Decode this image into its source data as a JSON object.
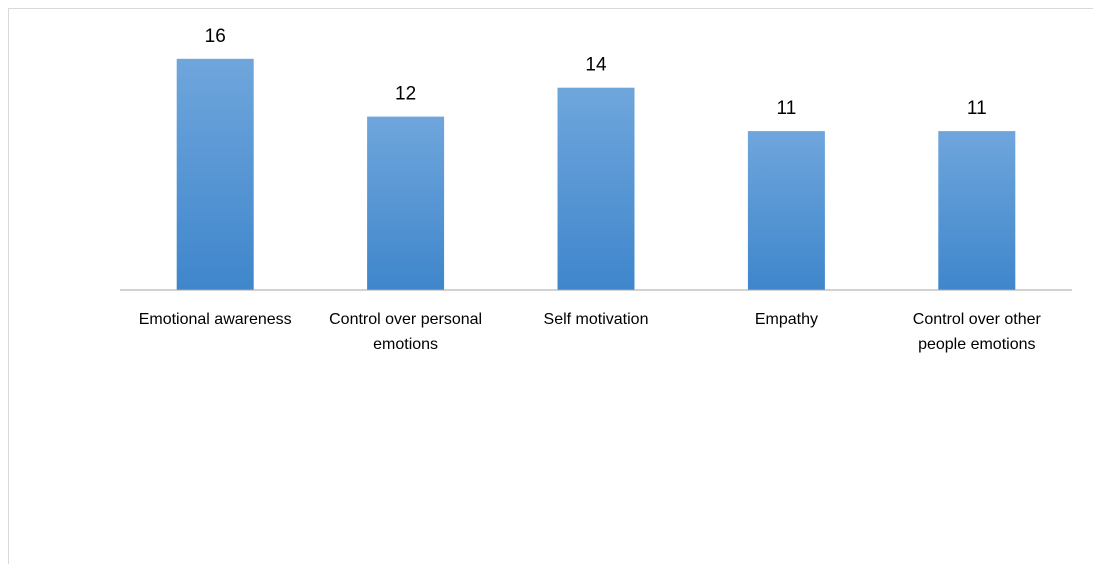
{
  "chart_data": {
    "type": "bar",
    "categories": [
      "Emotional awareness",
      "Control over personal emotions",
      "Self motivation",
      "Empathy",
      "Control over other people emotions"
    ],
    "category_lines": [
      [
        "Emotional awareness"
      ],
      [
        "Control over personal",
        "emotions"
      ],
      [
        "Self motivation"
      ],
      [
        "Empathy"
      ],
      [
        "Control over other",
        "people emotions"
      ]
    ],
    "values": [
      16,
      12,
      14,
      11,
      11
    ],
    "data_labels": [
      "16",
      "12",
      "14",
      "11",
      "11"
    ],
    "ylim": [
      0,
      18
    ],
    "bar_color_top": "#6fa6dc",
    "bar_color_bottom": "#3f86cc",
    "axis_color": "#a6a6a6",
    "grid": false,
    "legend": "none"
  }
}
